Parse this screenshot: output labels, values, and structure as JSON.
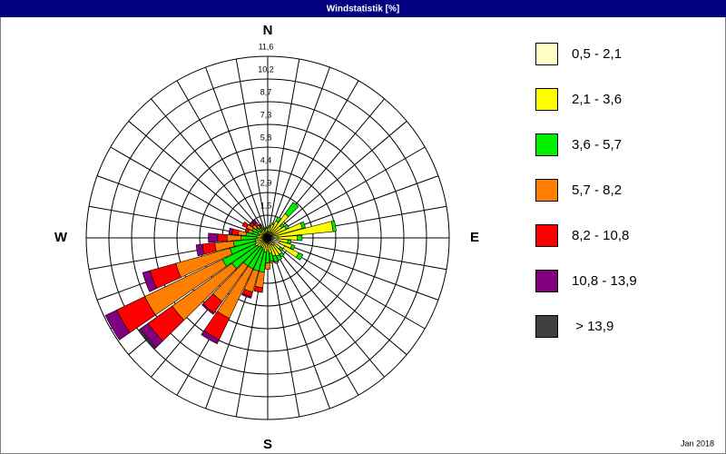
{
  "chart_data": {
    "type": "windrose",
    "title": "Windstatistik [%]",
    "footnote": "Jan 2018",
    "x": [
      0,
      10,
      20,
      30,
      40,
      50,
      60,
      70,
      80,
      90,
      100,
      110,
      120,
      130,
      140,
      150,
      160,
      170,
      180,
      190,
      200,
      210,
      220,
      230,
      240,
      250,
      260,
      270,
      280,
      290,
      300,
      310,
      320,
      330,
      340,
      350
    ],
    "xlim": [
      0,
      360
    ],
    "xticks": [
      {
        "value": 0,
        "label": "N"
      },
      {
        "value": 90,
        "label": "E"
      },
      {
        "value": 180,
        "label": "S"
      },
      {
        "value": 270,
        "label": "W"
      }
    ],
    "ylim": [
      0,
      11.6
    ],
    "yticks": [
      {
        "value": 1.45,
        "label": "1,5"
      },
      {
        "value": 2.9,
        "label": "2,9"
      },
      {
        "value": 4.35,
        "label": "4,4"
      },
      {
        "value": 5.8,
        "label": "5,8"
      },
      {
        "value": 7.25,
        "label": "7,3"
      },
      {
        "value": 8.7,
        "label": "8,7"
      },
      {
        "value": 10.15,
        "label": "10,2"
      },
      {
        "value": 11.6,
        "label": "11,6"
      }
    ],
    "series": [
      {
        "name": "0,5 - 2,1",
        "color": "#ffffc8",
        "values": [
          0.4,
          0.4,
          0.4,
          0.4,
          0.4,
          0.4,
          0.4,
          0.5,
          0.6,
          0.7,
          0.6,
          0.8,
          1.2,
          0.5,
          0.6,
          0.5,
          0.4,
          0.4,
          0.3,
          0.3,
          0.3,
          0.3,
          0.3,
          0.3,
          0.3,
          0.3,
          0.3,
          0.3,
          0.3,
          0.3,
          0.3,
          0.3,
          0.3,
          0.3,
          0.3,
          0.3
        ]
      },
      {
        "name": "2,1 - 3,6",
        "color": "#ffff00",
        "values": [
          0.2,
          0.3,
          0.5,
          0.8,
          1.5,
          0.7,
          0.9,
          1.8,
          3.6,
          1.2,
          0.7,
          0.8,
          1.0,
          0.5,
          0.7,
          0.8,
          0.8,
          0.6,
          0.5,
          0.6,
          0.5,
          0.4,
          0.4,
          0.5,
          0.6,
          0.5,
          0.5,
          0.4,
          0.4,
          0.3,
          0.4,
          0.3,
          0.3,
          0.3,
          0.2,
          0.3
        ]
      },
      {
        "name": "3,6 - 5,7",
        "color": "#00ee00",
        "values": [
          0.1,
          0.1,
          0.1,
          0.3,
          0.9,
          0.2,
          0.2,
          0.2,
          0.2,
          0.3,
          0.2,
          0.2,
          0.3,
          0.2,
          0.2,
          0.3,
          0.4,
          0.5,
          0.8,
          1.3,
          1.4,
          1.5,
          1.5,
          2.0,
          2.3,
          1.7,
          1.4,
          1.0,
          0.7,
          0.4,
          0.4,
          0.3,
          0.2,
          0.1,
          0.1,
          0.1
        ]
      },
      {
        "name": "5,7 - 8,2",
        "color": "#ff8000",
        "values": [
          0,
          0,
          0,
          0,
          0,
          0,
          0,
          0,
          0,
          0,
          0,
          0,
          0,
          0,
          0,
          0,
          0.1,
          0.1,
          0.4,
          1.0,
          1.4,
          3.5,
          2.8,
          4.7,
          5.5,
          3.6,
          1.2,
          0.9,
          0.5,
          0.3,
          0.4,
          0.3,
          0.2,
          0.1,
          0,
          0
        ]
      },
      {
        "name": "8,2 - 10,8",
        "color": "#ff0000",
        "values": [
          0,
          0,
          0,
          0,
          0,
          0,
          0,
          0,
          0,
          0,
          0,
          0,
          0,
          0,
          0,
          0,
          0,
          0,
          0,
          0.3,
          0.3,
          1.5,
          0.9,
          1.9,
          2.0,
          1.7,
          0.8,
          0.6,
          0.4,
          0.2,
          0.3,
          0.2,
          0.2,
          0.1,
          0,
          0
        ]
      },
      {
        "name": "10,8 - 13,9",
        "color": "#800080",
        "values": [
          0,
          0,
          0,
          0,
          0,
          0,
          0,
          0,
          0,
          0,
          0,
          0,
          0,
          0,
          0,
          0,
          0,
          0,
          0,
          0,
          0.1,
          0.3,
          0.1,
          0.6,
          0.8,
          0.5,
          0.4,
          0.6,
          0.2,
          0,
          0,
          0,
          0.2,
          0.1,
          0,
          0
        ]
      },
      {
        "name": " > 13,9",
        "color": "#404040",
        "values": [
          0,
          0,
          0,
          0,
          0,
          0,
          0,
          0,
          0,
          0,
          0,
          0,
          0,
          0,
          0,
          0,
          0,
          0,
          0,
          0,
          0,
          0,
          0,
          0.1,
          0,
          0,
          0,
          0,
          0,
          0,
          0,
          0,
          0,
          0,
          0,
          0
        ]
      }
    ]
  }
}
